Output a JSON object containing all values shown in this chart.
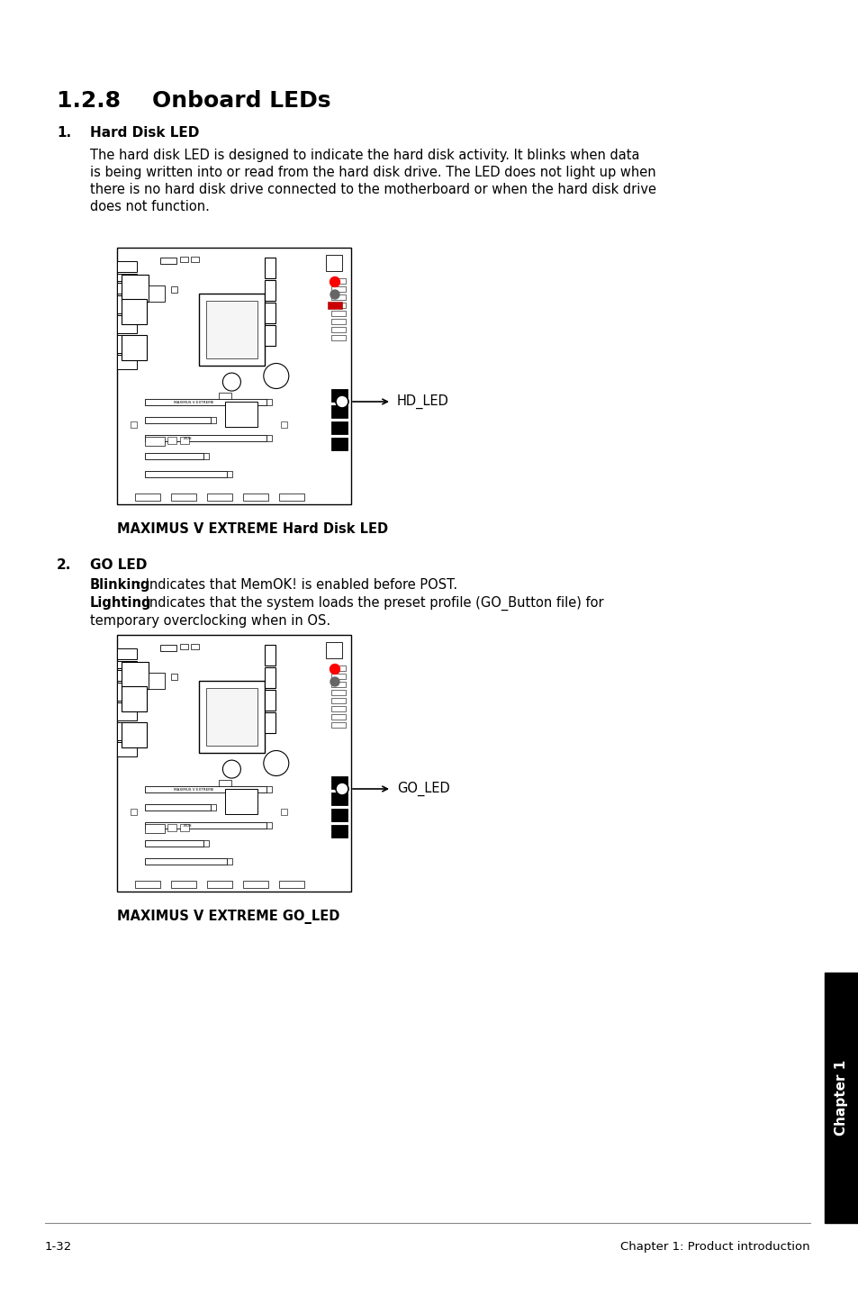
{
  "title": "1.2.8    Onboard LEDs",
  "section1_num": "1.",
  "section1_title": "Hard Disk LED",
  "section1_body_line1": "The hard disk LED is designed to indicate the hard disk activity. It blinks when data",
  "section1_body_line2": "is being written into or read from the hard disk drive. The LED does not light up when",
  "section1_body_line3": "there is no hard disk drive connected to the motherboard or when the hard disk drive",
  "section1_body_line4": "does not function.",
  "image1_caption": "MAXIMUS V EXTREME Hard Disk LED",
  "image1_label": "HD_LED",
  "section2_num": "2.",
  "section2_title": "GO LED",
  "section2_body1_bold": "Blinking",
  "section2_body1_rest": ": Indicates that MemOK! is enabled before POST.",
  "section2_body2_bold": "Lighting",
  "section2_body2_rest": ": Indicates that the system loads the preset profile (GO_Button file) for",
  "section2_body2_rest2": "temporary overclocking when in OS.",
  "image2_caption": "MAXIMUS V EXTREME GO_LED",
  "image2_label": "GO_LED",
  "footer_left": "1-32",
  "footer_right": "Chapter 1: Product introduction",
  "chapter_sidebar": "Chapter 1",
  "bg_color": "#ffffff",
  "text_color": "#000000"
}
